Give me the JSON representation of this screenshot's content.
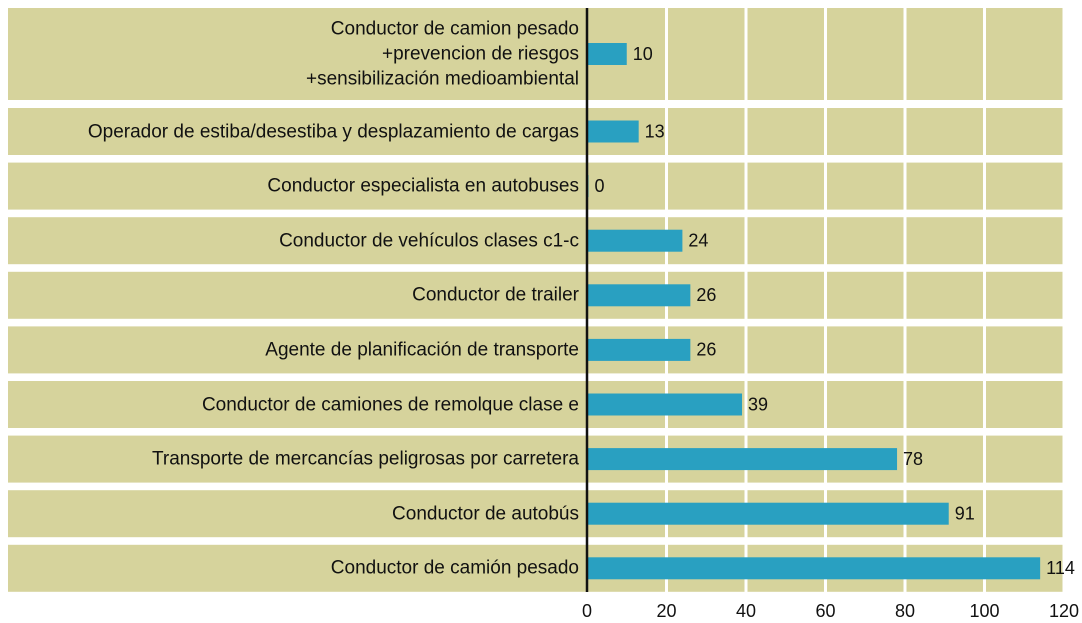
{
  "chart_data": {
    "type": "bar",
    "orientation": "horizontal",
    "categories": [
      "Conductor de camion pesado\n+prevencion de riesgos\n+sensibilización medioambiental",
      "Operador de estiba/desestiba y desplazamiento de cargas",
      "Conductor especialista en autobuses",
      "Conductor de vehículos clases c1-c",
      "Conductor de trailer",
      "Agente de planificación de transporte",
      "Conductor de camiones de remolque clase e",
      "Transporte de mercancías peligrosas por carretera",
      "Conductor de autobús",
      "Conductor de camión pesado"
    ],
    "values": [
      10,
      13,
      0,
      24,
      26,
      26,
      39,
      78,
      91,
      114
    ],
    "color": "#29a0c1",
    "band_color": "#d6d39c",
    "xlim": [
      0,
      120
    ],
    "xticks": [
      0,
      20,
      40,
      60,
      80,
      100,
      120
    ],
    "grid": true
  }
}
